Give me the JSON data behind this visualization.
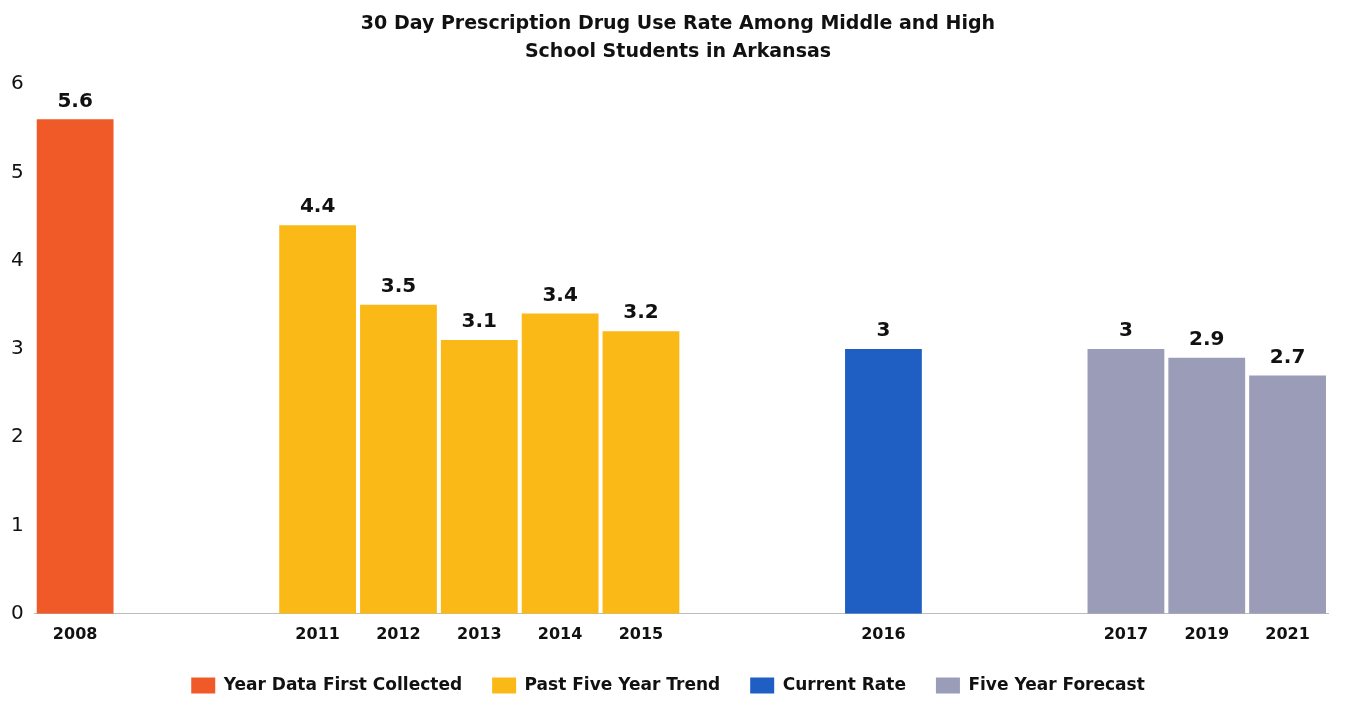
{
  "chart_data": {
    "type": "bar",
    "title": "30 Day Prescription Drug Use Rate Among Middle and High School Students in Arkansas",
    "categories": [
      "2008",
      null,
      null,
      "2011",
      "2012",
      "2013",
      "2014",
      "2015",
      null,
      null,
      "2016",
      null,
      null,
      "2017",
      "2019",
      "2021"
    ],
    "series": [
      {
        "name": "Year Data First Collected",
        "color": "#f05a28",
        "values": [
          5.6,
          null,
          null,
          null,
          null,
          null,
          null,
          null,
          null,
          null,
          null,
          null,
          null,
          null,
          null,
          null
        ]
      },
      {
        "name": "Past Five Year Trend",
        "color": "#fbb917",
        "values": [
          null,
          null,
          null,
          4.4,
          3.5,
          3.1,
          3.4,
          3.2,
          null,
          null,
          null,
          null,
          null,
          null,
          null,
          null
        ]
      },
      {
        "name": "Current Rate",
        "color": "#1f5fc4",
        "values": [
          null,
          null,
          null,
          null,
          null,
          null,
          null,
          null,
          null,
          null,
          3,
          null,
          null,
          null,
          null,
          null
        ]
      },
      {
        "name": "Five Year Forecast",
        "color": "#9a9cb8",
        "values": [
          null,
          null,
          null,
          null,
          null,
          null,
          null,
          null,
          null,
          null,
          null,
          null,
          null,
          3,
          2.9,
          2.7
        ]
      }
    ],
    "ylim": [
      0,
      6
    ],
    "yticks": [
      0,
      1,
      2,
      3,
      4,
      5,
      6
    ],
    "grid": false,
    "legend": "bottom",
    "data_labels": true
  }
}
